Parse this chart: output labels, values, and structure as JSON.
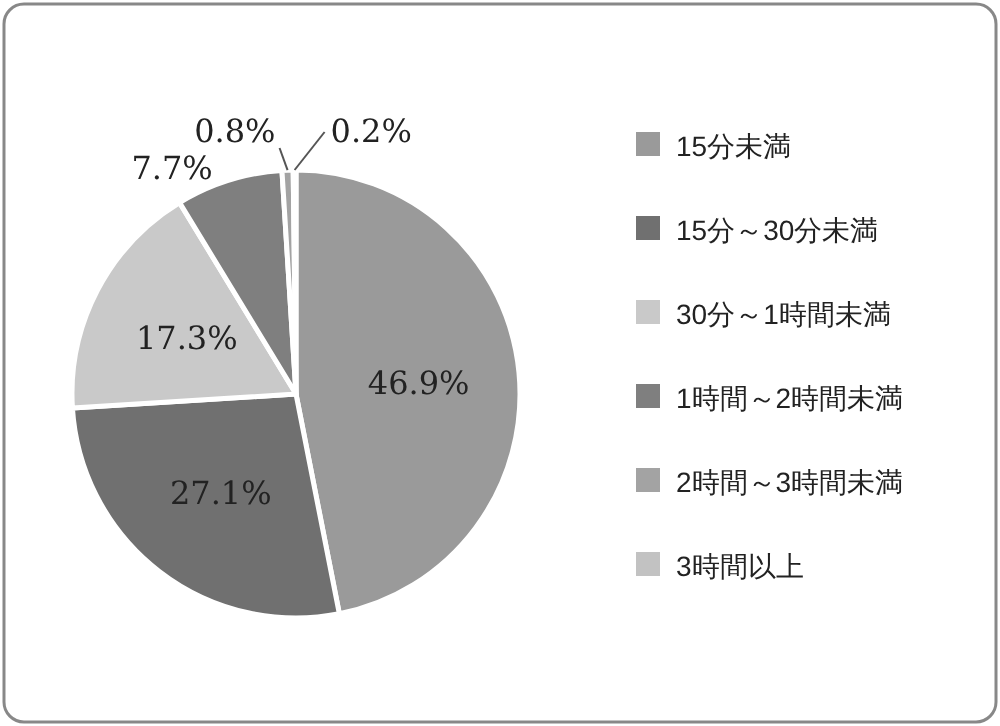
{
  "chart_data": {
    "type": "pie",
    "categories": [
      "15分未満",
      "15分～30分未満",
      "30分～1時間未満",
      "1時間～2時間未満",
      "2時間～3時間未満",
      "3時間以上"
    ],
    "values": [
      46.9,
      27.1,
      17.3,
      7.7,
      0.8,
      0.2
    ],
    "colors": [
      "#9a9a9a",
      "#707070",
      "#c9c9c9",
      "#7f7f7f",
      "#a3a3a3",
      "#c2c2c2"
    ],
    "value_labels": [
      "46.9%",
      "27.1%",
      "17.3%",
      "7.7%",
      "0.8%",
      "0.2%"
    ],
    "legend": "right"
  }
}
